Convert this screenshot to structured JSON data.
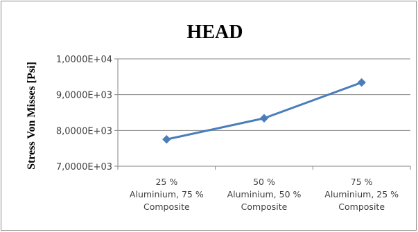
{
  "chart_data": {
    "type": "line",
    "title": "HEAD",
    "xlabel": "",
    "ylabel": "Stress Von Misses [Psi]",
    "categories": [
      [
        "25 %",
        "Aluminium, 75 %",
        "Composite"
      ],
      [
        "50 %",
        "Aluminium, 50 %",
        "Composite"
      ],
      [
        "75 %",
        "Aluminium, 25 %",
        "Composite"
      ]
    ],
    "values": [
      7750,
      8340,
      9340
    ],
    "ylim": [
      7000,
      10000
    ],
    "yticks": [
      7000,
      8000,
      9000,
      10000
    ],
    "ytick_labels": [
      "7,0000E+03",
      "8,0000E+03",
      "9,0000E+03",
      "1,0000E+04"
    ],
    "grid": true,
    "legend": "none",
    "colors": {
      "line": "#4A7EBB",
      "marker": "#4A7EBB",
      "grid": "#868686",
      "axis": "#868686"
    }
  }
}
